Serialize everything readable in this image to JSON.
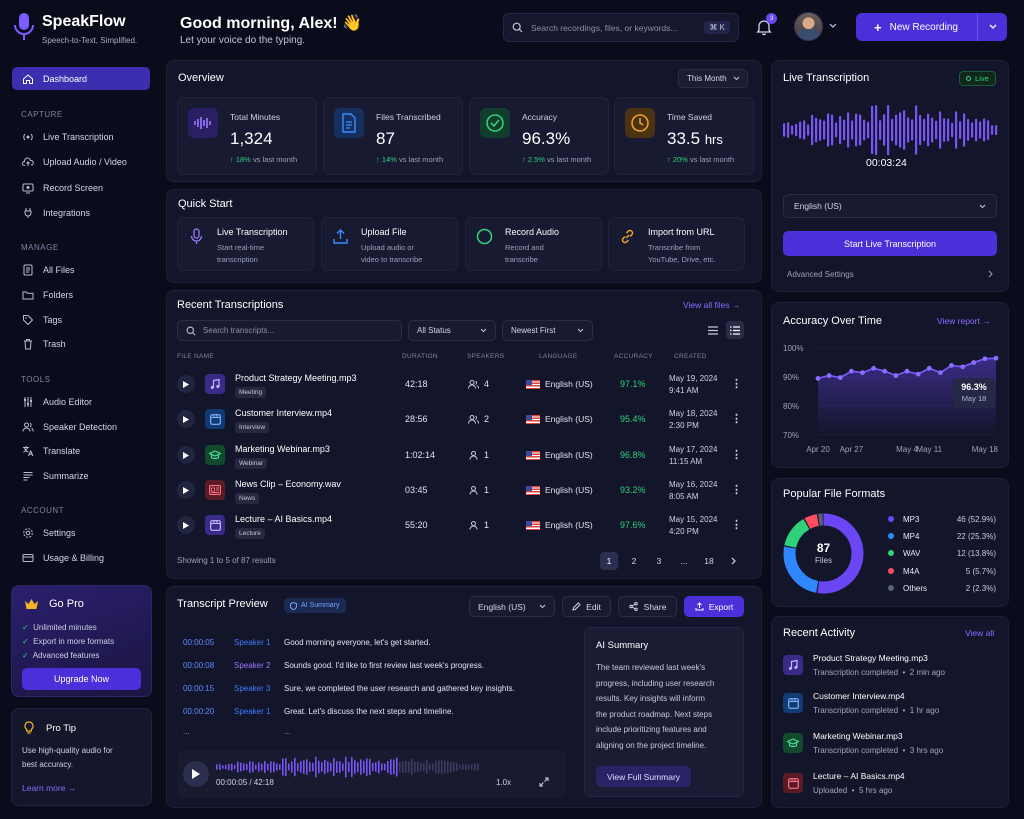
{
  "brand": {
    "name": "SpeakFlow",
    "tagline": "Speech-to-Text, Simplified."
  },
  "sidebar": {
    "dashboard": "Dashboard",
    "capture_title": "CAPTURE",
    "capture": [
      "Live Transcription",
      "Upload Audio / Video",
      "Record Screen",
      "Integrations"
    ],
    "manage_title": "MANAGE",
    "manage": [
      "All Files",
      "Folders",
      "Tags",
      "Trash"
    ],
    "tools_title": "TOOLS",
    "tools": [
      "Audio Editor",
      "Speaker Detection",
      "Translate",
      "Summarize"
    ],
    "account_title": "ACCOUNT",
    "account": [
      "Settings",
      "Usage & Billing"
    ]
  },
  "gopro": {
    "title": "Go Pro",
    "features": [
      "Unlimited minutes",
      "Export in more formats",
      "Advanced features"
    ],
    "button": "Upgrade Now"
  },
  "tip": {
    "title": "Pro Tip",
    "text1": "Use high-quality audio for",
    "text2": "best accuracy.",
    "link": "Learn more →"
  },
  "header": {
    "greeting": "Good morning, Alex! 👋",
    "subtitle": "Let your voice do the typing.",
    "search_placeholder": "Search recordings, files, or keywords...",
    "shortcut": "⌘ K",
    "notif_count": "3",
    "new_recording": "New Recording"
  },
  "overview": {
    "title": "Overview",
    "period": "This Month",
    "stats": [
      {
        "label": "Total Minutes",
        "value": "1,324",
        "change": "18%",
        "change_text": "vs last month"
      },
      {
        "label": "Files Transcribed",
        "value": "87",
        "change": "14%",
        "change_text": "vs last month"
      },
      {
        "label": "Accuracy",
        "value": "96.3%",
        "change": "2.5%",
        "change_text": "vs last month"
      },
      {
        "label": "Time Saved",
        "value": "33.5",
        "unit": "hrs",
        "change": "20%",
        "change_text": "vs last month"
      }
    ]
  },
  "quickstart": {
    "title": "Quick Start",
    "items": [
      {
        "title": "Live Transcription",
        "d1": "Start real-time",
        "d2": "transcription"
      },
      {
        "title": "Upload File",
        "d1": "Upload audio or",
        "d2": "video to transcribe"
      },
      {
        "title": "Record Audio",
        "d1": "Record and",
        "d2": "transcribe"
      },
      {
        "title": "Import from URL",
        "d1": "Transcribe from",
        "d2": "YouTube, Drive, etc."
      }
    ]
  },
  "recent": {
    "title": "Recent Transcriptions",
    "view_all": "View all files →",
    "search_placeholder": "Search transcripts...",
    "status_filter": "All Status",
    "sort": "Newest First",
    "columns": [
      "FILE NAME",
      "DURATION",
      "SPEAKERS",
      "LANGUAGE",
      "ACCURACY",
      "CREATED"
    ],
    "rows": [
      {
        "name": "Product Strategy Meeting.mp3",
        "tag": "Meeting",
        "duration": "42:18",
        "speakers": "4",
        "language": "English (US)",
        "accuracy": "97.1%",
        "date": "May 19, 2024",
        "time": "9:41 AM"
      },
      {
        "name": "Customer Interview.mp4",
        "tag": "Interview",
        "duration": "28:56",
        "speakers": "2",
        "language": "English (US)",
        "accuracy": "95.4%",
        "date": "May 18, 2024",
        "time": "2:30 PM"
      },
      {
        "name": "Marketing Webinar.mp3",
        "tag": "Webinar",
        "duration": "1:02:14",
        "speakers": "1",
        "language": "English (US)",
        "accuracy": "96.8%",
        "date": "May 17, 2024",
        "time": "11:15 AM"
      },
      {
        "name": "News Clip – Economy.wav",
        "tag": "News",
        "duration": "03:45",
        "speakers": "1",
        "language": "English (US)",
        "accuracy": "93.2%",
        "date": "May 16, 2024",
        "time": "8:05 AM"
      },
      {
        "name": "Lecture – AI Basics.mp4",
        "tag": "Lecture",
        "duration": "55:20",
        "speakers": "1",
        "language": "English (US)",
        "accuracy": "97.6%",
        "date": "May 15, 2024",
        "time": "4:20 PM"
      }
    ],
    "showing": "Showing 1 to 5 of 87 results",
    "pages": [
      "1",
      "2",
      "3",
      "...",
      "18"
    ]
  },
  "preview": {
    "title": "Transcript Preview",
    "badge": "AI Summary",
    "language": "English (US)",
    "edit": "Edit",
    "share": "Share",
    "export": "Export",
    "lines": [
      {
        "time": "00:00:05",
        "speaker": "Speaker 1",
        "text": "Good morning everyone, let's get started."
      },
      {
        "time": "00:00:08",
        "speaker": "Speaker 2",
        "text": "Sounds good. I'd like to first review last week's progress."
      },
      {
        "time": "00:00:15",
        "speaker": "Speaker 3",
        "text": "Sure, we completed the user research and gathered key insights."
      },
      {
        "time": "00:00:20",
        "speaker": "Speaker 1",
        "text": "Great. Let's discuss the next steps and timeline."
      }
    ],
    "ellipsis": "...",
    "player_time": "00:00:05 / 42:18",
    "speed": "1.0x",
    "summary_title": "AI Summary",
    "summary_lines": [
      "The team reviewed last week's",
      "progress, including user research",
      "results. Key insights will inform",
      "the product roadmap. Next steps",
      "include prioritizing features and",
      "aligning on the project timeline."
    ],
    "summary_button": "View Full Summary"
  },
  "live": {
    "title": "Live Transcription",
    "status": "Live",
    "timer": "00:03:24",
    "language": "English (US)",
    "start": "Start Live Transcription",
    "advanced": "Advanced Settings"
  },
  "accuracy_chart": {
    "title": "Accuracy Over Time",
    "link": "View report →",
    "callout_value": "96.3%",
    "callout_date": "May 18"
  },
  "chart_data": {
    "type": "area",
    "x": [
      "Apr 20",
      "Apr 23",
      "Apr 25",
      "Apr 27",
      "Apr 29",
      "May 1",
      "May 3",
      "May 5",
      "May 7",
      "May 9",
      "May 11",
      "May 13",
      "May 15",
      "May 16",
      "May 17",
      "May 18",
      "May 19"
    ],
    "x_ticks": [
      "Apr 20",
      "Apr 27",
      "May 4",
      "May 11",
      "May 18"
    ],
    "y_ticks": [
      "100%",
      "90%",
      "80%",
      "70%"
    ],
    "ylim": [
      70,
      100
    ],
    "values": [
      89.5,
      90.5,
      89.8,
      92,
      91.5,
      93,
      92,
      90.5,
      92,
      91,
      93,
      91.5,
      94,
      93.5,
      95,
      96.3,
      96.5
    ]
  },
  "formats": {
    "title": "Popular File Formats",
    "total": "87",
    "total_label": "Files",
    "items": [
      {
        "name": "MP3",
        "value": "46 (52.9%)",
        "pct": 52.9,
        "color": "#6a46f5"
      },
      {
        "name": "MP4",
        "value": "22 (25.3%)",
        "pct": 25.3,
        "color": "#2f86ff"
      },
      {
        "name": "WAV",
        "value": "12 (13.8%)",
        "pct": 13.8,
        "color": "#2fd27b"
      },
      {
        "name": "M4A",
        "value": "5 (5.7%)",
        "pct": 5.7,
        "color": "#ff4d5e"
      },
      {
        "name": "Others",
        "value": "2 (2.3%)",
        "pct": 2.3,
        "color": "#5b5f80"
      }
    ]
  },
  "activity": {
    "title": "Recent Activity",
    "view_all": "View all",
    "items": [
      {
        "name": "Product Strategy Meeting.mp3",
        "status": "Transcription completed",
        "ago": "2 min ago"
      },
      {
        "name": "Customer Interview.mp4",
        "status": "Transcription completed",
        "ago": "1 hr ago"
      },
      {
        "name": "Marketing Webinar.mp3",
        "status": "Transcription completed",
        "ago": "3 hrs ago"
      },
      {
        "name": "Lecture – AI Basics.mp4",
        "status": "Uploaded",
        "ago": "5 hrs ago"
      }
    ]
  },
  "colors": {
    "accent": "#4b2fd9",
    "purple": "#8b6cff",
    "green": "#2fd27b",
    "blue": "#2f86ff",
    "orange": "#f2a126",
    "red": "#ff4d5e",
    "bg": "#0b0c1b",
    "panel": "#13152a"
  }
}
